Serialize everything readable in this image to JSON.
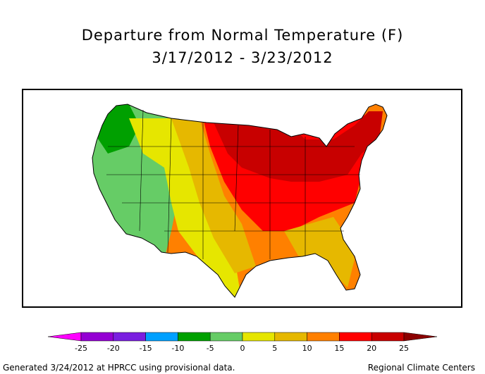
{
  "title": {
    "line1": "Departure from Normal Temperature (F)",
    "line2": "3/17/2012 - 3/23/2012"
  },
  "legend": {
    "ticks": [
      "-25",
      "-20",
      "-15",
      "-10",
      "-5",
      "0",
      "5",
      "10",
      "15",
      "20",
      "25"
    ],
    "bins": [
      {
        "color": "#9400d3"
      },
      {
        "color": "#7a1fe0"
      },
      {
        "color": "#00a0ff"
      },
      {
        "color": "#00a000"
      },
      {
        "color": "#66cc66"
      },
      {
        "color": "#e6e600"
      },
      {
        "color": "#e6b800"
      },
      {
        "color": "#ff8000"
      },
      {
        "color": "#ff0000"
      },
      {
        "color": "#c80000"
      }
    ],
    "low_arrow_color": "#ff00ff",
    "high_arrow_color": "#8b0000"
  },
  "footer": {
    "left": "Generated 3/24/2012 at HPRCC using provisional data.",
    "right": "Regional Climate Centers"
  }
}
